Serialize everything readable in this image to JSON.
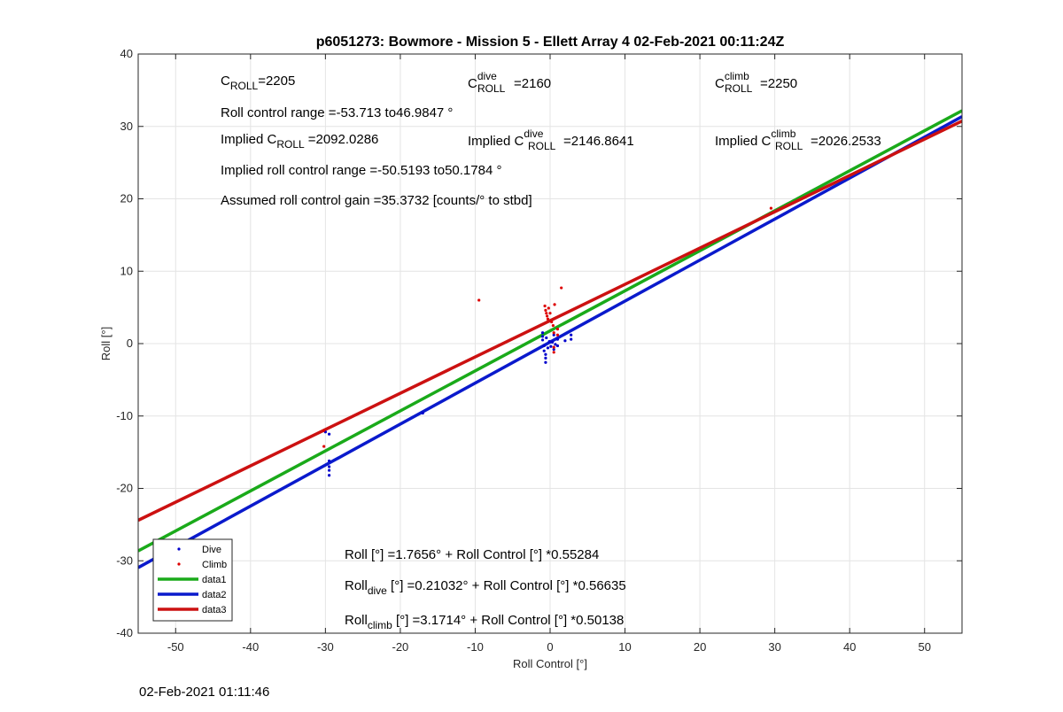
{
  "footer_timestamp": "02-Feb-2021 01:11:46",
  "colors": {
    "dive": "#0000cc",
    "climb": "#dd0000",
    "data1": "#1aaa1a",
    "data2": "#0a1acc",
    "data3": "#cc1111",
    "grid": "#e4e4e4",
    "axis": "#262626"
  },
  "annotations": {
    "c_roll": {
      "main": "C",
      "sub": "ROLL",
      "value": "=2205"
    },
    "c_roll_dive": {
      "main": "C",
      "sup": "dive",
      "sub": "ROLL",
      "value": "=2160"
    },
    "c_roll_climb": {
      "main": "C",
      "sup": "climb",
      "sub": "ROLL",
      "value": "=2250"
    },
    "roll_control_range": "Roll control range =-53.713 to46.9847 °",
    "implied_c_roll": {
      "prefix": "Implied C",
      "sub": "ROLL",
      "value": "=2092.0286"
    },
    "implied_c_roll_dive": {
      "prefix": "Implied C",
      "sup": "dive",
      "sub": "ROLL",
      "value": "=2146.8641"
    },
    "implied_c_roll_climb": {
      "prefix": "Implied C",
      "sup": "climb",
      "sub": "ROLL",
      "value": "=2026.2533"
    },
    "implied_range": "Implied roll control range =-50.5193 to50.1784 °",
    "gain": "Assumed roll control gain =35.3732 [counts/° to stbd]",
    "fit_all": "Roll [°] =1.7656° + Roll Control [°] *0.55284",
    "fit_dive": {
      "prefix": "Roll",
      "sub": "dive",
      "rest": " [°] =0.21032° + Roll Control [°] *0.56635"
    },
    "fit_climb": {
      "prefix": "Roll",
      "sub": "climb",
      "rest": " [°] =3.1714° + Roll Control [°] *0.50138"
    }
  },
  "chart_data": {
    "type": "scatter",
    "title": "p6051273: Bowmore - Mission 5 - Ellett Array 4 02-Feb-2021 00:11:24Z",
    "xlabel": "Roll Control [°]",
    "ylabel": "Roll [°]",
    "xlim": [
      -55,
      55
    ],
    "ylim": [
      -40,
      40
    ],
    "xticks": [
      -50,
      -40,
      -30,
      -20,
      -10,
      0,
      10,
      20,
      30,
      40,
      50
    ],
    "yticks": [
      -40,
      -30,
      -20,
      -10,
      0,
      10,
      20,
      30,
      40
    ],
    "grid": true,
    "legend_position": "bottom-left",
    "series": [
      {
        "name": "Dive",
        "kind": "points",
        "color": "#0000cc",
        "points": [
          [
            -30,
            -12.2
          ],
          [
            -29.5,
            -12.5
          ],
          [
            -29.5,
            -16.2
          ],
          [
            -29.5,
            -17.0
          ],
          [
            -29.5,
            -17.5
          ],
          [
            -29.5,
            -18.2
          ],
          [
            -17,
            -9.6
          ],
          [
            -1,
            1.5
          ],
          [
            -1,
            1.0
          ],
          [
            -1,
            0.5
          ],
          [
            -0.8,
            -0.3
          ],
          [
            -0.8,
            -1.0
          ],
          [
            -0.6,
            -1.5
          ],
          [
            -0.6,
            -2.0
          ],
          [
            -0.6,
            -2.6
          ],
          [
            -0.5,
            0.8
          ],
          [
            -0.3,
            -0.6
          ],
          [
            -0.1,
            0.3
          ],
          [
            0.1,
            -0.4
          ],
          [
            0.3,
            0.2
          ],
          [
            0.5,
            1.2
          ],
          [
            0.5,
            -0.8
          ],
          [
            0.7,
            -0.1
          ],
          [
            1,
            0.6
          ],
          [
            1,
            -0.3
          ],
          [
            2.8,
            1.2
          ],
          [
            2.8,
            0.6
          ],
          [
            2,
            0.4
          ]
        ]
      },
      {
        "name": "Climb",
        "kind": "points",
        "color": "#dd0000",
        "points": [
          [
            -30.2,
            -12.0
          ],
          [
            -30.2,
            -14.2
          ],
          [
            -9.5,
            6.0
          ],
          [
            -0.7,
            5.2
          ],
          [
            -0.6,
            4.6
          ],
          [
            -0.5,
            4.2
          ],
          [
            -0.4,
            3.8
          ],
          [
            -0.3,
            3.4
          ],
          [
            -0.2,
            4.9
          ],
          [
            0,
            4.2
          ],
          [
            0.2,
            3.0
          ],
          [
            0.4,
            2.5
          ],
          [
            0.5,
            1.5
          ],
          [
            0.5,
            -0.5
          ],
          [
            0.5,
            -1.2
          ],
          [
            0.6,
            5.4
          ],
          [
            1.0,
            1.2
          ],
          [
            1.0,
            2.0
          ],
          [
            1.5,
            7.7
          ],
          [
            29.5,
            18.7
          ]
        ]
      },
      {
        "name": "data1",
        "kind": "line",
        "color": "#1aaa1a",
        "intercept": 1.7656,
        "slope": 0.55284
      },
      {
        "name": "data2",
        "kind": "line",
        "color": "#0a1acc",
        "intercept": 0.21032,
        "slope": 0.56635
      },
      {
        "name": "data3",
        "kind": "line",
        "color": "#cc1111",
        "intercept": 3.1714,
        "slope": 0.50138
      }
    ]
  }
}
